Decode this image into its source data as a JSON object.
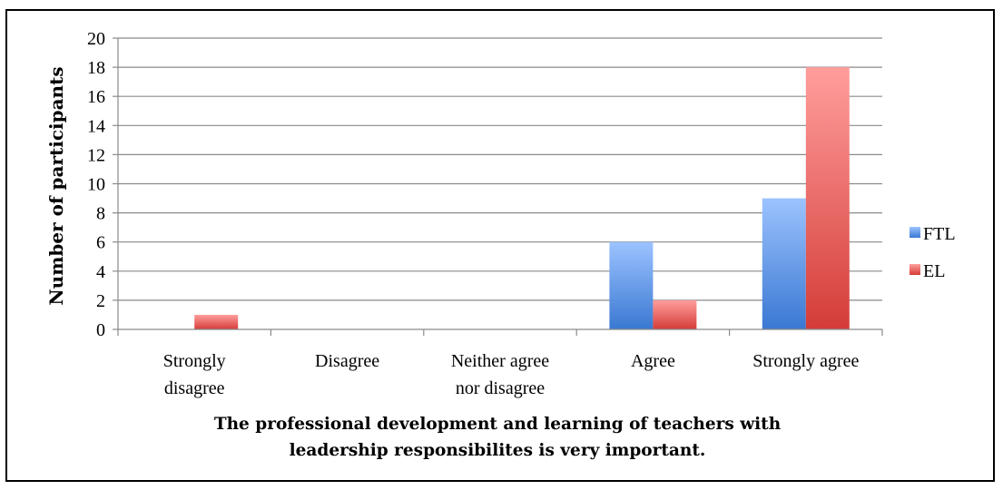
{
  "chart_data": {
    "type": "bar",
    "categories": [
      "Strongly disagree",
      "Disagree",
      "Neither agree nor disagree",
      "Agree",
      "Strongly agree"
    ],
    "category_lines": [
      [
        "Strongly",
        "disagree"
      ],
      [
        "Disagree"
      ],
      [
        "Neither agree",
        "nor disagree"
      ],
      [
        "Agree"
      ],
      [
        "Strongly agree"
      ]
    ],
    "series": [
      {
        "name": "FTL",
        "values": [
          0,
          0,
          0,
          6,
          9
        ],
        "color_top": "#9cc3ff",
        "color_bottom": "#3a78d2"
      },
      {
        "name": "EL",
        "values": [
          1,
          0,
          0,
          2,
          18
        ],
        "color_top": "#ff9e9c",
        "color_bottom": "#d43c38"
      }
    ],
    "ylabel": "Number of participants",
    "xlabel_lines": [
      "The professional development and learning of teachers with",
      "leadership responsibilites is very important."
    ],
    "ylim": [
      0,
      20
    ],
    "yticks": [
      0,
      2,
      4,
      6,
      8,
      10,
      12,
      14,
      16,
      18,
      20
    ],
    "grid": true,
    "legend_position": "right"
  }
}
